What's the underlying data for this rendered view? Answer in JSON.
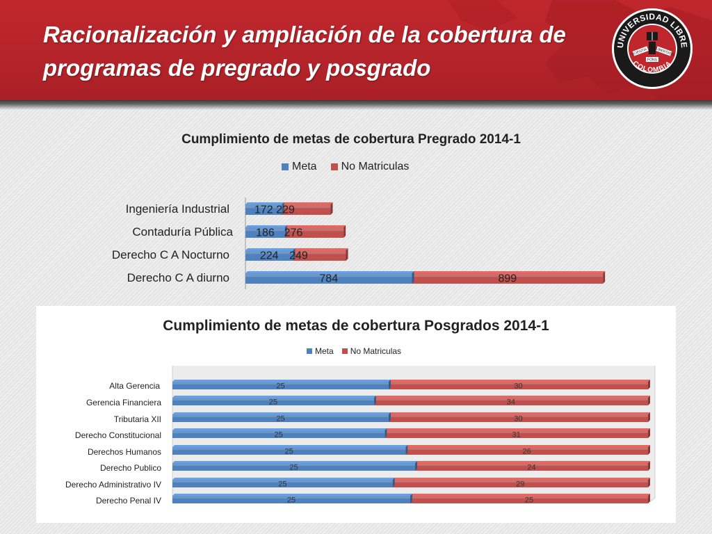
{
  "slide": {
    "title_line1": "Racionalización y ampliación de la cobertura de",
    "title_line2": "programas  de pregrado y posgrado"
  },
  "logo": {
    "text_top": "UNIVERSIDAD LIBRE",
    "text_bottom": "COLOMBIA",
    "motto_left": "SCIENTIA",
    "motto_center": "FONS",
    "motto_right": "LIBERTATIS"
  },
  "colors": {
    "header_red": "#b3242a",
    "meta_blue": "#4f81bd",
    "no_matriculas_red": "#c0504d",
    "label_text": "#222222"
  },
  "chart_data": [
    {
      "type": "bar",
      "orientation": "horizontal",
      "stacked": true,
      "style": "3d",
      "title": "Cumplimiento de metas de cobertura Pregrado 2014-1",
      "legend_position": "top",
      "grid": false,
      "categories": [
        "Ingeniería Industrial",
        "Contaduría Pública",
        "Derecho C A Nocturno",
        "Derecho C A diurno"
      ],
      "series": [
        {
          "name": "Meta",
          "values": [
            172,
            186,
            224,
            784
          ]
        },
        {
          "name": "No Matriculas",
          "values": [
            229,
            276,
            249,
            899
          ]
        }
      ],
      "data_labels": true
    },
    {
      "type": "bar",
      "orientation": "horizontal",
      "stacked": true,
      "percent": true,
      "style": "3d",
      "title": "Cumplimiento de metas de cobertura Posgrados 2014-1",
      "legend_position": "top",
      "grid": false,
      "categories": [
        "Alta Gerencia",
        "Gerencia Financiera",
        "Tributaria XII",
        "Derecho Constitucional",
        "Derechos Humanos",
        "Derecho Publico",
        "Derecho Administrativo IV",
        "Derecho Penal IV"
      ],
      "series": [
        {
          "name": "Meta",
          "values": [
            25,
            25,
            25,
            25,
            25,
            25,
            25,
            25
          ]
        },
        {
          "name": "No Matriculas",
          "values": [
            30,
            34,
            30,
            31,
            26,
            24,
            29,
            25
          ]
        }
      ],
      "data_labels": true
    }
  ]
}
